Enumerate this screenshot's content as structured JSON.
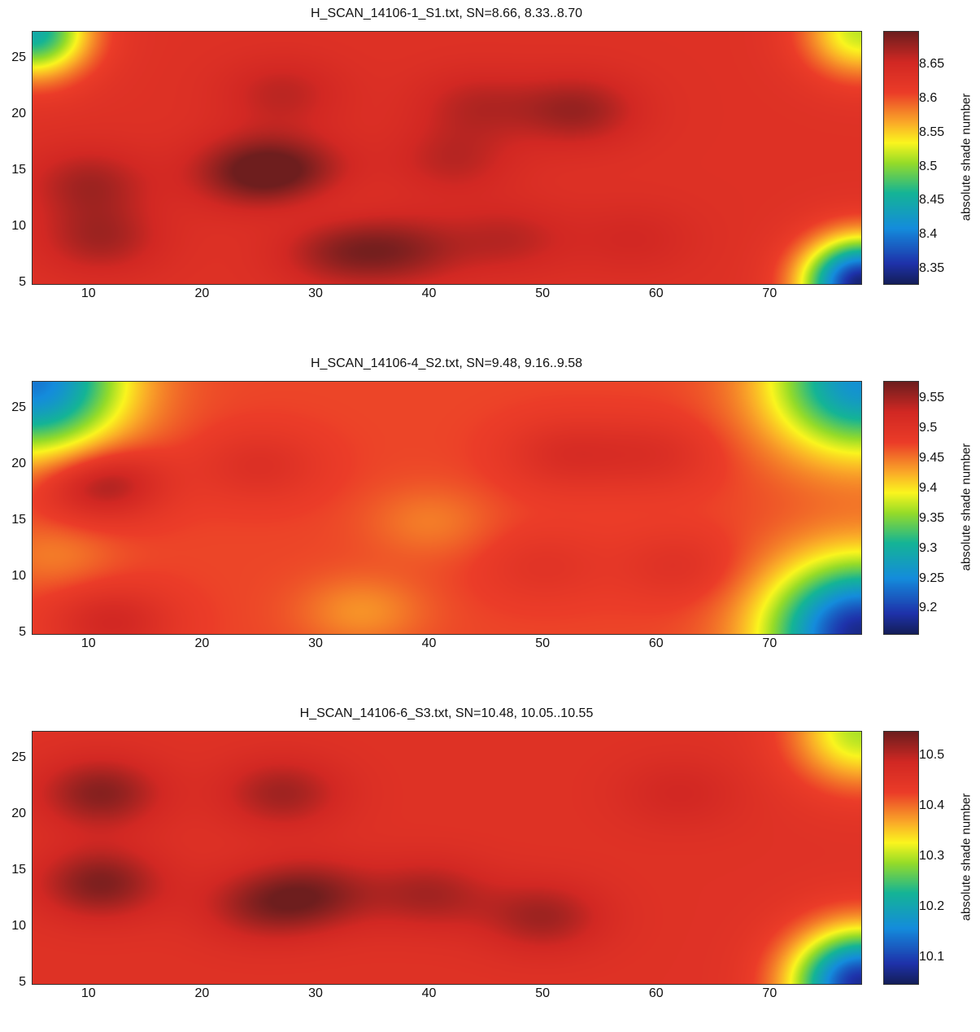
{
  "chart_data": [
    {
      "type": "heatmap",
      "title": "H_SCAN_14106-1_S1.txt, SN=8.66, 8.33..8.70",
      "xlim": [
        5,
        78
      ],
      "ylim": [
        5,
        27.5
      ],
      "xticks": [
        10,
        20,
        30,
        40,
        50,
        60,
        70
      ],
      "yticks": [
        25,
        20,
        15,
        10,
        5
      ],
      "colorbar": {
        "label": "absolute shade number",
        "range": [
          8.33,
          8.7
        ],
        "ticks": [
          8.65,
          8.6,
          8.55,
          8.5,
          8.45,
          8.4,
          8.35
        ]
      },
      "base": 8.635,
      "edge_radius": 5.0,
      "edge_drop": 0.31,
      "corner_min": [
        [
          5,
          27.5,
          8.45
        ],
        [
          78,
          27.5,
          8.52
        ],
        [
          78,
          5,
          8.34
        ]
      ],
      "features": [
        {
          "x": 10,
          "y": 14,
          "value": 8.675
        },
        {
          "x": 11,
          "y": 9,
          "value": 8.675
        },
        {
          "x": 24,
          "y": 15,
          "value": 8.685
        },
        {
          "x": 28,
          "y": 15,
          "value": 8.68
        },
        {
          "x": 32,
          "y": 8,
          "value": 8.68
        },
        {
          "x": 38,
          "y": 8,
          "value": 8.675
        },
        {
          "x": 27,
          "y": 22,
          "value": 8.665
        },
        {
          "x": 44,
          "y": 21,
          "value": 8.665
        },
        {
          "x": 53,
          "y": 20.5,
          "value": 8.68
        },
        {
          "x": 47,
          "y": 9,
          "value": 8.665
        },
        {
          "x": 58,
          "y": 9,
          "value": 8.655
        },
        {
          "x": 42,
          "y": 16,
          "value": 8.665
        },
        {
          "x": 30,
          "y": 12,
          "value": 8.62
        }
      ]
    },
    {
      "type": "heatmap",
      "title": "H_SCAN_14106-4_S2.txt, SN=9.48, 9.16..9.58",
      "xlim": [
        5,
        78
      ],
      "ylim": [
        5,
        27.5
      ],
      "xticks": [
        10,
        20,
        30,
        40,
        50,
        60,
        70
      ],
      "yticks": [
        25,
        20,
        15,
        10,
        5
      ],
      "colorbar": {
        "label": "absolute shade number",
        "range": [
          9.16,
          9.58
        ],
        "ticks": [
          9.55,
          9.5,
          9.45,
          9.4,
          9.35,
          9.3,
          9.25,
          9.2
        ]
      },
      "base": 9.475,
      "edge_radius": 8.0,
      "edge_drop": 0.31,
      "corner_min": [
        [
          5,
          27.5,
          9.24
        ],
        [
          78,
          27.5,
          9.26
        ],
        [
          78,
          5,
          9.18
        ]
      ],
      "features": [
        {
          "x": 11,
          "y": 18.5,
          "value": 9.565
        },
        {
          "x": 12,
          "y": 6,
          "value": 9.53
        },
        {
          "x": 25,
          "y": 20,
          "value": 9.51
        },
        {
          "x": 52,
          "y": 21,
          "value": 9.515
        },
        {
          "x": 60,
          "y": 21,
          "value": 9.51
        },
        {
          "x": 50,
          "y": 11,
          "value": 9.5
        },
        {
          "x": 62,
          "y": 11,
          "value": 9.505
        },
        {
          "x": 34,
          "y": 7,
          "value": 9.44
        },
        {
          "x": 40,
          "y": 15,
          "value": 9.45
        },
        {
          "x": 7,
          "y": 12,
          "value": 9.45
        }
      ]
    },
    {
      "type": "heatmap",
      "title": "H_SCAN_14106-6_S3.txt, SN=10.48, 10.05..10.55",
      "xlim": [
        5,
        78
      ],
      "ylim": [
        5,
        27.5
      ],
      "xticks": [
        10,
        20,
        30,
        40,
        50,
        60,
        70
      ],
      "yticks": [
        25,
        20,
        15,
        10,
        5
      ],
      "colorbar": {
        "label": "absolute shade number",
        "range": [
          10.05,
          10.55
        ],
        "ticks": [
          10.5,
          10.4,
          10.3,
          10.2,
          10.1
        ]
      },
      "base": 10.46,
      "edge_radius": 6.0,
      "edge_drop": 0.4,
      "corner_min": [
        [
          78,
          27.5,
          10.3
        ],
        [
          78,
          5,
          10.08
        ]
      ],
      "features": [
        {
          "x": 11,
          "y": 22,
          "value": 10.535
        },
        {
          "x": 11,
          "y": 14,
          "value": 10.54
        },
        {
          "x": 27,
          "y": 22,
          "value": 10.52
        },
        {
          "x": 30,
          "y": 13,
          "value": 10.525
        },
        {
          "x": 40,
          "y": 13,
          "value": 10.515
        },
        {
          "x": 50,
          "y": 11,
          "value": 10.52
        },
        {
          "x": 25,
          "y": 12,
          "value": 10.515
        },
        {
          "x": 62,
          "y": 22,
          "value": 10.49
        }
      ]
    }
  ]
}
